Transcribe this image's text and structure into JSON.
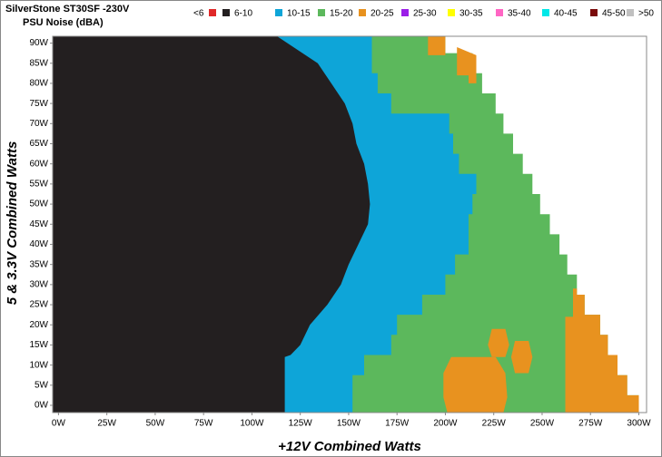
{
  "chart_data": {
    "type": "region",
    "title": "SilverStone ST30SF -230V",
    "subtitle": "PSU Noise (dBA)",
    "xlabel": "+12V Combined Watts",
    "ylabel": "5 & 3.3V Combined Watts",
    "xlim": [
      -3,
      304
    ],
    "ylim": [
      -1.8,
      91.7
    ],
    "xticks": [
      {
        "value": 0,
        "label": "0W"
      },
      {
        "value": 25,
        "label": "25W"
      },
      {
        "value": 50,
        "label": "50W"
      },
      {
        "value": 75,
        "label": "75W"
      },
      {
        "value": 100,
        "label": "100W"
      },
      {
        "value": 125,
        "label": "125W"
      },
      {
        "value": 150,
        "label": "150W"
      },
      {
        "value": 175,
        "label": "175W"
      },
      {
        "value": 200,
        "label": "200W"
      },
      {
        "value": 225,
        "label": "225W"
      },
      {
        "value": 250,
        "label": "250W"
      },
      {
        "value": 275,
        "label": "275W"
      },
      {
        "value": 300,
        "label": "300W"
      }
    ],
    "yticks": [
      {
        "value": 0,
        "label": "0W"
      },
      {
        "value": 5,
        "label": "5W"
      },
      {
        "value": 10,
        "label": "10W"
      },
      {
        "value": 15,
        "label": "15W"
      },
      {
        "value": 20,
        "label": "20W"
      },
      {
        "value": 25,
        "label": "25W"
      },
      {
        "value": 30,
        "label": "30W"
      },
      {
        "value": 35,
        "label": "35W"
      },
      {
        "value": 40,
        "label": "40W"
      },
      {
        "value": 45,
        "label": "45W"
      },
      {
        "value": 50,
        "label": "50W"
      },
      {
        "value": 55,
        "label": "55W"
      },
      {
        "value": 60,
        "label": "60W"
      },
      {
        "value": 65,
        "label": "65W"
      },
      {
        "value": 70,
        "label": "70W"
      },
      {
        "value": 75,
        "label": "75W"
      },
      {
        "value": 80,
        "label": "80W"
      },
      {
        "value": 85,
        "label": "85W"
      },
      {
        "value": 90,
        "label": "90W"
      }
    ],
    "draw_order": [
      3,
      2,
      1,
      4
    ],
    "series": [
      {
        "name": "<6",
        "color": "#e02828",
        "polygons": []
      },
      {
        "name": "6-10",
        "color": "#231f20",
        "polygons": [
          {
            "x": [
              -3,
              117,
              117,
              120,
              125,
              130,
              139,
              146,
              150,
              155,
              160,
              161,
              160,
              158,
              154,
              152,
              148,
              141,
              134,
              113,
              -3
            ],
            "y": [
              -1.8,
              -1.8,
              12,
              12.5,
              15,
              20,
              25,
              30,
              35,
              40,
              45,
              50,
              55,
              60,
              65,
              70,
              75,
              80,
              85,
              91.7,
              91.7
            ]
          }
        ]
      },
      {
        "name": "10-15",
        "color": "#0ea5d8",
        "polygons": [
          {
            "x": [
              -3,
              152,
              152,
              158,
              158,
              172,
              172,
              175,
              175,
              188,
              188,
              200,
              200,
              205,
              205,
              212,
              212,
              214,
              214,
              216,
              216,
              207,
              207,
              204,
              204,
              202,
              202,
              172,
              172,
              165,
              165,
              162,
              162,
              -3
            ],
            "y": [
              -1.8,
              -1.8,
              7.5,
              7.5,
              12.5,
              12.5,
              17.5,
              17.5,
              22.5,
              22.5,
              27.5,
              27.5,
              32.5,
              32.5,
              37.5,
              37.5,
              47.5,
              47.5,
              52.5,
              52.5,
              57.5,
              57.5,
              62.5,
              62.5,
              67.5,
              67.5,
              72.5,
              72.5,
              77.5,
              77.5,
              82.5,
              82.5,
              91.7,
              91.7
            ]
          }
        ]
      },
      {
        "name": "15-20",
        "color": "#5cb85c",
        "polygons": [
          {
            "x": [
              -3,
              300,
              300,
              294,
              294,
              289,
              289,
              284,
              284,
              280,
              280,
              272,
              272,
              268,
              268,
              263,
              263,
              259,
              259,
              254,
              254,
              249,
              249,
              245,
              245,
              240,
              240,
              235,
              235,
              230,
              230,
              226,
              226,
              219,
              219,
              214,
              214,
              200,
              200,
              -3
            ],
            "y": [
              -1.8,
              -1.8,
              2.5,
              2.5,
              7.5,
              7.5,
              12.5,
              12.5,
              17.5,
              17.5,
              22.5,
              22.5,
              27.5,
              27.5,
              32.5,
              32.5,
              37.5,
              37.5,
              42.5,
              42.5,
              47.5,
              47.5,
              52.5,
              52.5,
              57.5,
              57.5,
              62.5,
              62.5,
              67.5,
              67.5,
              72.5,
              72.5,
              77.5,
              77.5,
              82.5,
              82.5,
              87.5,
              87.5,
              91.7,
              91.7
            ]
          }
        ]
      },
      {
        "name": "20-25",
        "color": "#e8921f",
        "polygons": [
          {
            "x": [
              201,
              230,
              232,
              231,
              226,
              203,
              199,
              199
            ],
            "y": [
              -1.8,
              -1.8,
              2,
              8,
              12,
              12,
              8,
              2
            ]
          },
          {
            "x": [
              224,
              231,
              233,
              231,
              224,
              222
            ],
            "y": [
              12,
              12,
              15,
              19,
              19,
              15
            ]
          },
          {
            "x": [
              236,
              243,
              245,
              243,
              236,
              234
            ],
            "y": [
              8,
              8,
              12,
              16,
              16,
              12
            ]
          },
          {
            "x": [
              262,
              300,
              300,
              294,
              294,
              289,
              289,
              284,
              284,
              280,
              280,
              272,
              272,
              268,
              268,
              266,
              266,
              262
            ],
            "y": [
              -1.8,
              -1.8,
              2.5,
              2.5,
              7.5,
              7.5,
              12.5,
              12.5,
              17.5,
              17.5,
              22.5,
              22.5,
              27.5,
              27.5,
              29,
              29,
              22,
              22
            ]
          },
          {
            "x": [
              191,
              200,
              200,
              191
            ],
            "y": [
              87,
              87,
              91.7,
              91.7
            ]
          },
          {
            "x": [
              206,
              212,
              212,
              216,
              216,
              206
            ],
            "y": [
              82,
              82,
              80,
              80,
              87,
              89
            ]
          }
        ]
      },
      {
        "name": "25-30",
        "color": "#9b1ee8",
        "polygons": []
      },
      {
        "name": "30-35",
        "color": "#ffff00",
        "polygons": []
      },
      {
        "name": "35-40",
        "color": "#ff66c4",
        "polygons": []
      },
      {
        "name": "40-45",
        "color": "#00e8e8",
        "polygons": []
      },
      {
        "name": "45-50",
        "color": "#7a0a0a",
        "polygons": []
      },
      {
        "name": ">50",
        "color": "#c0c0c0",
        "polygons": []
      }
    ]
  }
}
